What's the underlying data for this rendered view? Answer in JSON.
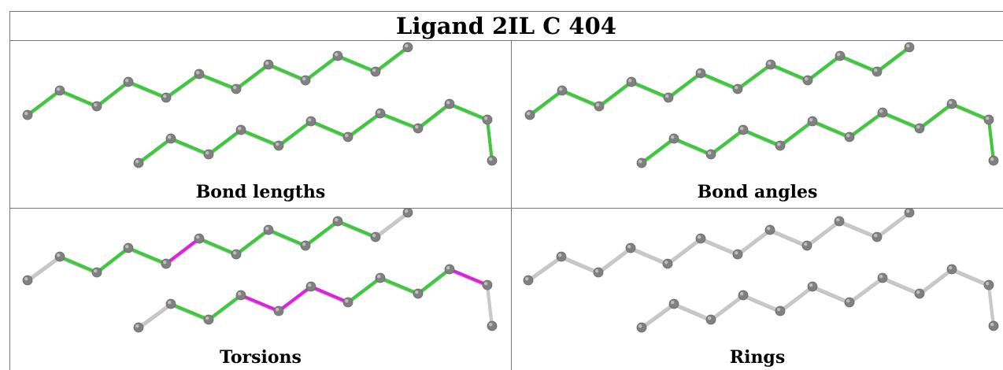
{
  "title": "Ligand 2IL C 404",
  "colors": {
    "ok": "#3cc93c",
    "outlier": "#e020e0",
    "neutral": "#c8c8c8",
    "atom": "#808080",
    "atom_highlight": "#bdbdbd",
    "border": "#777777"
  },
  "panels": [
    {
      "caption": "Bond lengths",
      "scheme": "bond_lengths"
    },
    {
      "caption": "Bond angles",
      "scheme": "bond_angles"
    },
    {
      "caption": "Torsions",
      "scheme": "torsions"
    },
    {
      "caption": "Rings",
      "scheme": "rings"
    }
  ],
  "torsions_bond_status": {
    "top": [
      "neutral",
      "ok",
      "ok",
      "ok",
      "outlier",
      "ok",
      "ok",
      "ok",
      "ok",
      "ok",
      "neutral"
    ],
    "bottom": [
      "neutral",
      "ok",
      "ok",
      "outlier",
      "outlier",
      "outlier",
      "ok",
      "ok",
      "ok",
      "outlier",
      "neutral"
    ]
  }
}
